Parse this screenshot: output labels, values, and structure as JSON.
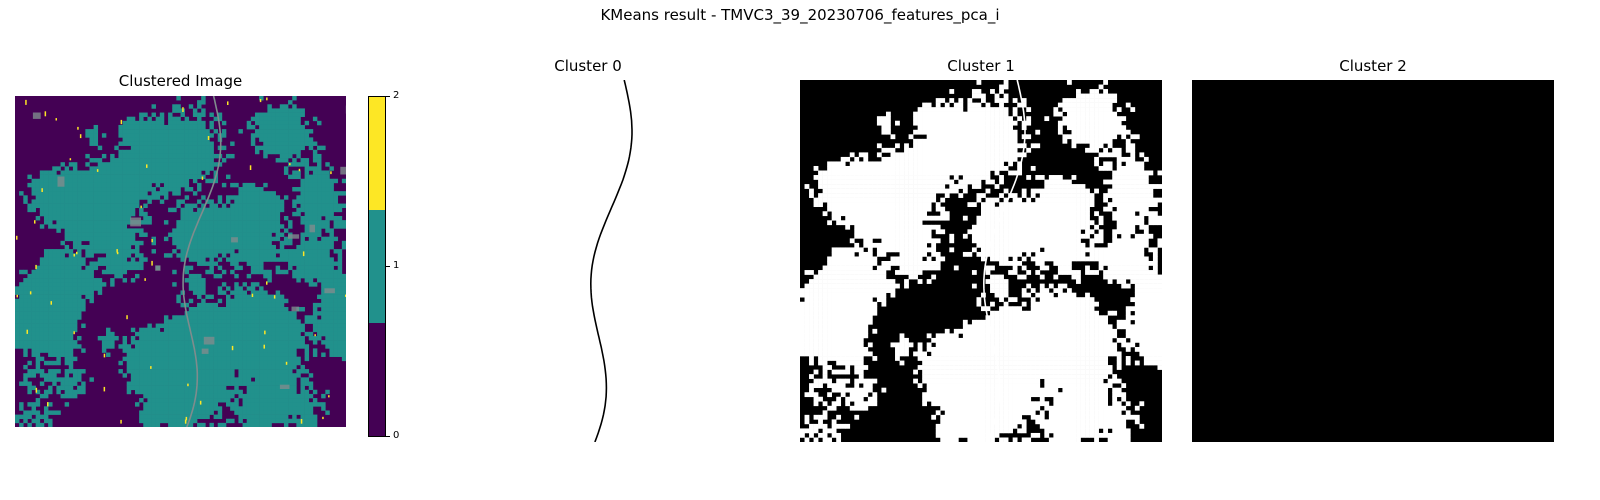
{
  "figure": {
    "suptitle": "KMeans result - TMVC3_39_20230706_features_pca_i"
  },
  "panels": [
    {
      "title": "Clustered Image"
    },
    {
      "title": "Cluster 0"
    },
    {
      "title": "Cluster 1"
    },
    {
      "title": "Cluster 2"
    }
  ],
  "colorbar": {
    "ticks": [
      "0",
      "1",
      "2"
    ],
    "colors": [
      "#440154",
      "#21918c",
      "#fde725"
    ]
  },
  "colors": {
    "cluster0": "#440154",
    "cluster1": "#21918c",
    "cluster2": "#fde725",
    "road": "#7f8c8d",
    "mask_on": "#ffffff",
    "mask_off": "#000000"
  }
}
